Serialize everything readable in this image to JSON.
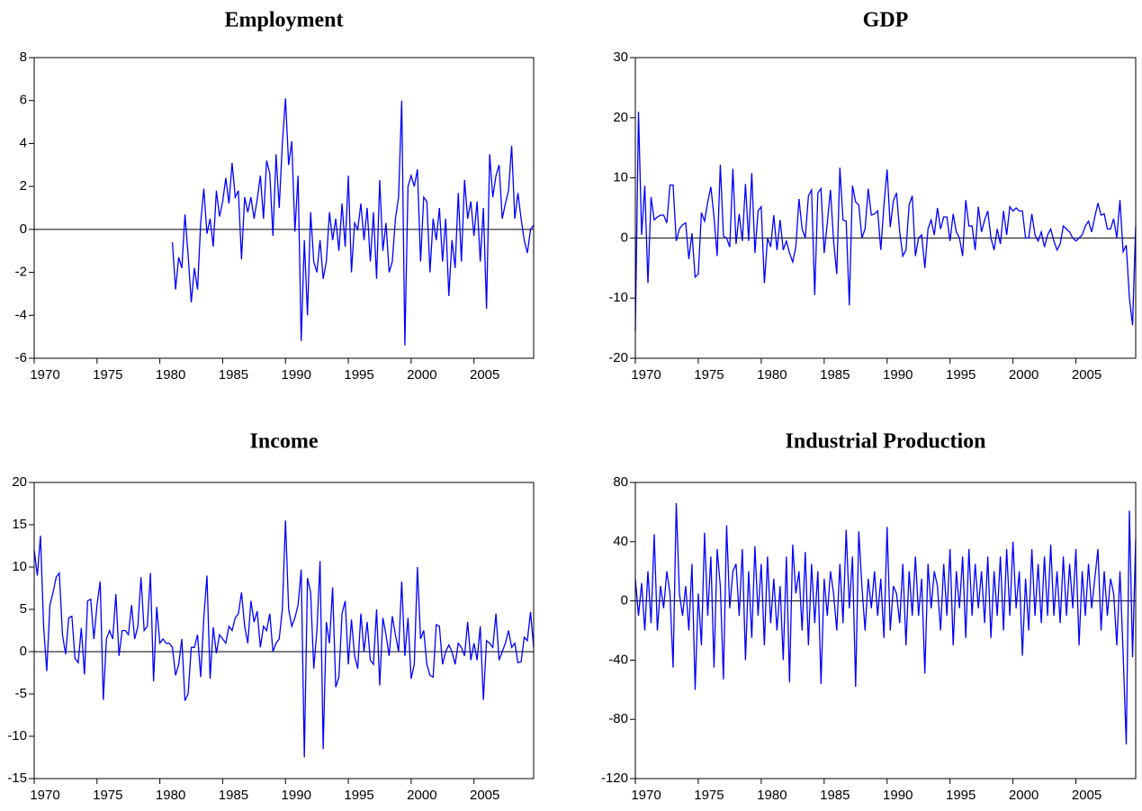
{
  "chart_data": [
    {
      "type": "line",
      "title": "Employment",
      "color": "#0000ff",
      "zero_line": true,
      "xlim": [
        1970,
        2009.75
      ],
      "xticks": [
        1970,
        1975,
        1980,
        1985,
        1990,
        1995,
        2000,
        2005
      ],
      "ylim": [
        -6,
        8
      ],
      "yticks": [
        -6,
        -4,
        -2,
        0,
        2,
        4,
        6,
        8
      ],
      "x": [
        1981,
        1981.25,
        1981.5,
        1981.75,
        1982,
        1982.25,
        1982.5,
        1982.75,
        1983,
        1983.25,
        1983.5,
        1983.75,
        1984,
        1984.25,
        1984.5,
        1984.75,
        1985,
        1985.25,
        1985.5,
        1985.75,
        1986,
        1986.25,
        1986.5,
        1986.75,
        1987,
        1987.25,
        1987.5,
        1987.75,
        1988,
        1988.25,
        1988.5,
        1988.75,
        1989,
        1989.25,
        1989.5,
        1989.75,
        1990,
        1990.25,
        1990.5,
        1990.75,
        1991,
        1991.25,
        1991.5,
        1991.75,
        1992,
        1992.25,
        1992.5,
        1992.75,
        1993,
        1993.25,
        1993.5,
        1993.75,
        1994,
        1994.25,
        1994.5,
        1994.75,
        1995,
        1995.25,
        1995.5,
        1995.75,
        1996,
        1996.25,
        1996.5,
        1996.75,
        1997,
        1997.25,
        1997.5,
        1997.75,
        1998,
        1998.25,
        1998.5,
        1998.75,
        1999,
        1999.25,
        1999.5,
        1999.75,
        2000,
        2000.25,
        2000.5,
        2000.75,
        2001,
        2001.25,
        2001.5,
        2001.75,
        2002,
        2002.25,
        2002.5,
        2002.75,
        2003,
        2003.25,
        2003.5,
        2003.75,
        2004,
        2004.25,
        2004.5,
        2004.75,
        2005,
        2005.25,
        2005.5,
        2005.75,
        2006,
        2006.25,
        2006.5,
        2006.75,
        2007,
        2007.25,
        2007.5,
        2007.75,
        2008,
        2008.25,
        2008.5,
        2008.75,
        2009,
        2009.25,
        2009.5,
        2009.75
      ],
      "values": [
        -0.6,
        -2.8,
        -1.3,
        -1.8,
        0.7,
        -1.2,
        -3.4,
        -1.8,
        -2.8,
        0.3,
        1.9,
        -0.2,
        0.5,
        -0.8,
        1.8,
        0.6,
        1.3,
        2.4,
        1.2,
        3.1,
        1.5,
        1.8,
        -1.4,
        1.5,
        0.8,
        1.5,
        0.5,
        1.4,
        2.5,
        0.5,
        3.2,
        2.6,
        -0.3,
        3.5,
        1,
        4,
        6.1,
        3,
        4.1,
        -0.1,
        2.5,
        -5.2,
        -0.5,
        -4,
        0.8,
        -1.5,
        -2,
        -0.5,
        -2.3,
        -1.5,
        0.8,
        -0.5,
        0.5,
        -1,
        1.2,
        -0.8,
        2.5,
        -2,
        0.3,
        0,
        1.2,
        -0.5,
        1,
        -1.5,
        0.8,
        -2.3,
        2.3,
        -1,
        0.3,
        -2,
        -1.5,
        0.5,
        1.5,
        6,
        -5.4,
        2,
        2.5,
        2,
        2.8,
        -1.5,
        1.5,
        1.3,
        -2,
        0.5,
        -0.5,
        1,
        -1.5,
        0.5,
        -3.1,
        -0.5,
        -1.8,
        1.7,
        -1.5,
        2.3,
        0.5,
        1.3,
        -0.3,
        1.3,
        -1.5,
        1,
        -3.7,
        3.5,
        1.5,
        2.5,
        3,
        0.5,
        1.2,
        1.8,
        3.9,
        0.5,
        1.7,
        0.5,
        -0.5,
        -1.1,
        0,
        0.2
      ]
    },
    {
      "type": "line",
      "title": "GDP",
      "color": "#0000ff",
      "zero_line": true,
      "xlim": [
        1970,
        2009.75
      ],
      "xticks": [
        1970,
        1975,
        1980,
        1985,
        1990,
        1995,
        2000,
        2005
      ],
      "ylim": [
        -20,
        30
      ],
      "yticks": [
        -20,
        -10,
        0,
        10,
        20,
        30
      ],
      "x": [
        1970,
        1970.25,
        1970.5,
        1970.75,
        1971,
        1971.25,
        1971.5,
        1971.75,
        1972,
        1972.25,
        1972.5,
        1972.75,
        1973,
        1973.25,
        1973.5,
        1973.75,
        1974,
        1974.25,
        1974.5,
        1974.75,
        1975,
        1975.25,
        1975.5,
        1975.75,
        1976,
        1976.25,
        1976.5,
        1976.75,
        1977,
        1977.25,
        1977.5,
        1977.75,
        1978,
        1978.25,
        1978.5,
        1978.75,
        1979,
        1979.25,
        1979.5,
        1979.75,
        1980,
        1980.25,
        1980.5,
        1980.75,
        1981,
        1981.25,
        1981.5,
        1981.75,
        1982,
        1982.25,
        1982.5,
        1982.75,
        1983,
        1983.25,
        1983.5,
        1983.75,
        1984,
        1984.25,
        1984.5,
        1984.75,
        1985,
        1985.25,
        1985.5,
        1985.75,
        1986,
        1986.25,
        1986.5,
        1986.75,
        1987,
        1987.25,
        1987.5,
        1987.75,
        1988,
        1988.25,
        1988.5,
        1988.75,
        1989,
        1989.25,
        1989.5,
        1989.75,
        1990,
        1990.25,
        1990.5,
        1990.75,
        1991,
        1991.25,
        1991.5,
        1991.75,
        1992,
        1992.25,
        1992.5,
        1992.75,
        1993,
        1993.25,
        1993.5,
        1993.75,
        1994,
        1994.25,
        1994.5,
        1994.75,
        1995,
        1995.25,
        1995.5,
        1995.75,
        1996,
        1996.25,
        1996.5,
        1996.75,
        1997,
        1997.25,
        1997.5,
        1997.75,
        1998,
        1998.25,
        1998.5,
        1998.75,
        1999,
        1999.25,
        1999.5,
        1999.75,
        2000,
        2000.25,
        2000.5,
        2000.75,
        2001,
        2001.25,
        2001.5,
        2001.75,
        2002,
        2002.25,
        2002.5,
        2002.75,
        2003,
        2003.25,
        2003.5,
        2003.75,
        2004,
        2004.25,
        2004.5,
        2004.75,
        2005,
        2005.25,
        2005.5,
        2005.75,
        2006,
        2006.25,
        2006.5,
        2006.75,
        2007,
        2007.25,
        2007.5,
        2007.75,
        2008,
        2008.25,
        2008.5,
        2008.75,
        2009,
        2009.25,
        2009.5,
        2009.75
      ],
      "values": [
        -15.5,
        21,
        0.5,
        8.7,
        -7.5,
        6.8,
        3,
        3.5,
        3.8,
        3.8,
        2.5,
        8.8,
        8.8,
        -0.5,
        1.5,
        2.2,
        2.5,
        -3.5,
        0.8,
        -6.5,
        -6,
        4.2,
        2.8,
        6,
        8.5,
        3.5,
        -3,
        12.2,
        0.3,
        0,
        -1.5,
        11.5,
        -1,
        4,
        -0.5,
        9,
        -0.5,
        10.8,
        -2.5,
        4.5,
        5.2,
        -7.5,
        0,
        -1.5,
        3.8,
        -2,
        3,
        -2,
        -0.5,
        -2.5,
        -4,
        -1.5,
        6.5,
        1.5,
        0,
        7,
        8,
        -9.5,
        7.5,
        8.2,
        -2.5,
        2.5,
        8,
        -0.5,
        -6,
        11.7,
        3,
        2.8,
        -11.2,
        8.7,
        6,
        5.5,
        0,
        1.5,
        8.2,
        3.8,
        4,
        4.5,
        -2,
        5.5,
        11.4,
        1.8,
        6.2,
        7.5,
        1,
        -3,
        -2,
        5.5,
        7,
        -3,
        0,
        0.5,
        -5,
        1.5,
        3,
        0.5,
        5,
        1.5,
        3.5,
        3.5,
        -0.5,
        4,
        1,
        0,
        -3,
        6.3,
        2,
        2,
        -2,
        5.2,
        1,
        3,
        4.5,
        0,
        -2,
        1.5,
        -1,
        4.5,
        0.5,
        5.2,
        4.5,
        5,
        4.5,
        4.5,
        0,
        0,
        4,
        0.5,
        -0.5,
        1,
        -1.5,
        0.5,
        1.5,
        -0.5,
        -2,
        -1,
        2,
        1.5,
        1,
        0,
        -0.5,
        0,
        0.5,
        2,
        2.8,
        1,
        3.5,
        5.8,
        3.8,
        4,
        1.5,
        1.5,
        3.2,
        0,
        6.3,
        -2.3,
        -1.2,
        -10,
        -14.5,
        2
      ]
    },
    {
      "type": "line",
      "title": "Income",
      "color": "#0000ff",
      "zero_line": true,
      "xlim": [
        1970,
        2009.75
      ],
      "xticks": [
        1970,
        1975,
        1980,
        1985,
        1990,
        1995,
        2000,
        2005
      ],
      "ylim": [
        -15,
        20
      ],
      "yticks": [
        -15,
        -10,
        -5,
        0,
        5,
        10,
        15,
        20
      ],
      "x": [
        1970,
        1970.25,
        1970.5,
        1970.75,
        1971,
        1971.25,
        1971.5,
        1971.75,
        1972,
        1972.25,
        1972.5,
        1972.75,
        1973,
        1973.25,
        1973.5,
        1973.75,
        1974,
        1974.25,
        1974.5,
        1974.75,
        1975,
        1975.25,
        1975.5,
        1975.75,
        1976,
        1976.25,
        1976.5,
        1976.75,
        1977,
        1977.25,
        1977.5,
        1977.75,
        1978,
        1978.25,
        1978.5,
        1978.75,
        1979,
        1979.25,
        1979.5,
        1979.75,
        1980,
        1980.25,
        1980.5,
        1980.75,
        1981,
        1981.25,
        1981.5,
        1981.75,
        1982,
        1982.25,
        1982.5,
        1982.75,
        1983,
        1983.25,
        1983.5,
        1983.75,
        1984,
        1984.25,
        1984.5,
        1984.75,
        1985,
        1985.25,
        1985.5,
        1985.75,
        1986,
        1986.25,
        1986.5,
        1986.75,
        1987,
        1987.25,
        1987.5,
        1987.75,
        1988,
        1988.25,
        1988.5,
        1988.75,
        1989,
        1989.25,
        1989.5,
        1989.75,
        1990,
        1990.25,
        1990.5,
        1990.75,
        1991,
        1991.25,
        1991.5,
        1991.75,
        1992,
        1992.25,
        1992.5,
        1992.75,
        1993,
        1993.25,
        1993.5,
        1993.75,
        1994,
        1994.25,
        1994.5,
        1994.75,
        1995,
        1995.25,
        1995.5,
        1995.75,
        1996,
        1996.25,
        1996.5,
        1996.75,
        1997,
        1997.25,
        1997.5,
        1997.75,
        1998,
        1998.25,
        1998.5,
        1998.75,
        1999,
        1999.25,
        1999.5,
        1999.75,
        2000,
        2000.25,
        2000.5,
        2000.75,
        2001,
        2001.25,
        2001.5,
        2001.75,
        2002,
        2002.25,
        2002.5,
        2002.75,
        2003,
        2003.25,
        2003.5,
        2003.75,
        2004,
        2004.25,
        2004.5,
        2004.75,
        2005,
        2005.25,
        2005.5,
        2005.75,
        2006,
        2006.25,
        2006.5,
        2006.75,
        2007,
        2007.25,
        2007.5,
        2007.75,
        2008,
        2008.25,
        2008.5,
        2008.75,
        2009,
        2009.25,
        2009.5,
        2009.75
      ],
      "values": [
        12,
        9,
        13.7,
        3,
        -2.3,
        5.5,
        7,
        8.8,
        9.3,
        2,
        -0.3,
        4,
        4.2,
        -0.8,
        -1.3,
        2.8,
        -2.7,
        6,
        6.2,
        1.5,
        5.5,
        8.3,
        -5.7,
        1.5,
        2.5,
        1.5,
        6.8,
        -0.5,
        2.5,
        2.5,
        2,
        5.5,
        1.5,
        3,
        8.8,
        2.5,
        3,
        9.3,
        -3.5,
        5.3,
        1,
        1.5,
        1,
        1,
        0.5,
        -2.8,
        -1.5,
        1.5,
        -5.8,
        -5,
        0.5,
        0.5,
        2,
        -3,
        4,
        9,
        -3.2,
        2.9,
        -0.2,
        2,
        1.5,
        1,
        3,
        2.5,
        4,
        4.5,
        7,
        3,
        1,
        6,
        3.5,
        4.8,
        0.5,
        3,
        2.5,
        4.5,
        0,
        1,
        1.5,
        5,
        15.5,
        5,
        3,
        4,
        5.5,
        9.7,
        -12.5,
        8.7,
        7,
        -2,
        2.5,
        10.7,
        -11.5,
        3.5,
        1,
        7.6,
        -4.2,
        -3,
        4.5,
        6,
        -1.5,
        3.8,
        -0.5,
        -2,
        4.5,
        0,
        3.5,
        -1,
        -1.5,
        5,
        -4,
        4,
        2,
        -0.5,
        4.2,
        2,
        0,
        8.3,
        -0.5,
        4,
        -3.2,
        -1.5,
        10,
        1.5,
        2.5,
        -1.5,
        -2.8,
        -3,
        3.2,
        3,
        -1.5,
        0,
        0.8,
        0,
        -1.5,
        1,
        0.5,
        -0.5,
        3.5,
        -1,
        1,
        -1,
        3,
        -5.7,
        1.3,
        1,
        0.5,
        4.5,
        -1,
        0,
        1,
        2.5,
        0.5,
        1,
        -1.3,
        -1.2,
        1.7,
        1.3,
        4.7,
        0.5
      ]
    },
    {
      "type": "line",
      "title": "Industrial Production",
      "color": "#0000ff",
      "zero_line": true,
      "xlim": [
        1970,
        2009.75
      ],
      "xticks": [
        1970,
        1975,
        1980,
        1985,
        1990,
        1995,
        2000,
        2005
      ],
      "ylim": [
        -120,
        80
      ],
      "yticks": [
        -120,
        -80,
        -40,
        0,
        40,
        80
      ],
      "x": [
        1970,
        1970.25,
        1970.5,
        1970.75,
        1971,
        1971.25,
        1971.5,
        1971.75,
        1972,
        1972.25,
        1972.5,
        1972.75,
        1973,
        1973.25,
        1973.5,
        1973.75,
        1974,
        1974.25,
        1974.5,
        1974.75,
        1975,
        1975.25,
        1975.5,
        1975.75,
        1976,
        1976.25,
        1976.5,
        1976.75,
        1977,
        1977.25,
        1977.5,
        1977.75,
        1978,
        1978.25,
        1978.5,
        1978.75,
        1979,
        1979.25,
        1979.5,
        1979.75,
        1980,
        1980.25,
        1980.5,
        1980.75,
        1981,
        1981.25,
        1981.5,
        1981.75,
        1982,
        1982.25,
        1982.5,
        1982.75,
        1983,
        1983.25,
        1983.5,
        1983.75,
        1984,
        1984.25,
        1984.5,
        1984.75,
        1985,
        1985.25,
        1985.5,
        1985.75,
        1986,
        1986.25,
        1986.5,
        1986.75,
        1987,
        1987.25,
        1987.5,
        1987.75,
        1988,
        1988.25,
        1988.5,
        1988.75,
        1989,
        1989.25,
        1989.5,
        1989.75,
        1990,
        1990.25,
        1990.5,
        1990.75,
        1991,
        1991.25,
        1991.5,
        1991.75,
        1992,
        1992.25,
        1992.5,
        1992.75,
        1993,
        1993.25,
        1993.5,
        1993.75,
        1994,
        1994.25,
        1994.5,
        1994.75,
        1995,
        1995.25,
        1995.5,
        1995.75,
        1996,
        1996.25,
        1996.5,
        1996.75,
        1997,
        1997.25,
        1997.5,
        1997.75,
        1998,
        1998.25,
        1998.5,
        1998.75,
        1999,
        1999.25,
        1999.5,
        1999.75,
        2000,
        2000.25,
        2000.5,
        2000.75,
        2001,
        2001.25,
        2001.5,
        2001.75,
        2002,
        2002.25,
        2002.5,
        2002.75,
        2003,
        2003.25,
        2003.5,
        2003.75,
        2004,
        2004.25,
        2004.5,
        2004.75,
        2005,
        2005.25,
        2005.5,
        2005.75,
        2006,
        2006.25,
        2006.5,
        2006.75,
        2007,
        2007.25,
        2007.5,
        2007.75,
        2008,
        2008.25,
        2008.5,
        2008.75,
        2009,
        2009.25,
        2009.5,
        2009.75
      ],
      "values": [
        15,
        -10,
        12,
        -20,
        20,
        -15,
        45,
        -20,
        10,
        -5,
        20,
        5,
        -45,
        66,
        5,
        -10,
        10,
        -20,
        25,
        -60,
        5,
        -30,
        46,
        -10,
        30,
        -45,
        35,
        10,
        -53,
        51,
        -5,
        20,
        25,
        -10,
        35,
        -40,
        20,
        -25,
        37,
        -10,
        25,
        -30,
        30,
        -15,
        15,
        -20,
        10,
        -40,
        30,
        -55,
        38,
        5,
        20,
        -20,
        33,
        -30,
        25,
        -15,
        20,
        -56,
        15,
        -10,
        20,
        5,
        -20,
        25,
        -15,
        48,
        -5,
        30,
        -58,
        47,
        10,
        -20,
        15,
        -5,
        20,
        -10,
        15,
        -25,
        50,
        -20,
        10,
        5,
        -15,
        25,
        -30,
        20,
        -10,
        30,
        -10,
        15,
        -49,
        25,
        -5,
        20,
        10,
        -20,
        25,
        -10,
        35,
        -30,
        20,
        -5,
        30,
        -25,
        35,
        -10,
        25,
        -5,
        20,
        -15,
        30,
        -25,
        20,
        -10,
        30,
        -20,
        35,
        -10,
        40,
        -5,
        20,
        -37,
        15,
        -20,
        35,
        -10,
        25,
        -15,
        30,
        -10,
        38,
        -10,
        20,
        -15,
        30,
        -10,
        25,
        -5,
        35,
        -30,
        20,
        -10,
        25,
        -5,
        15,
        35,
        -20,
        20,
        -10,
        15,
        5,
        -30,
        20,
        -35,
        -97,
        61,
        -38,
        42
      ]
    }
  ]
}
